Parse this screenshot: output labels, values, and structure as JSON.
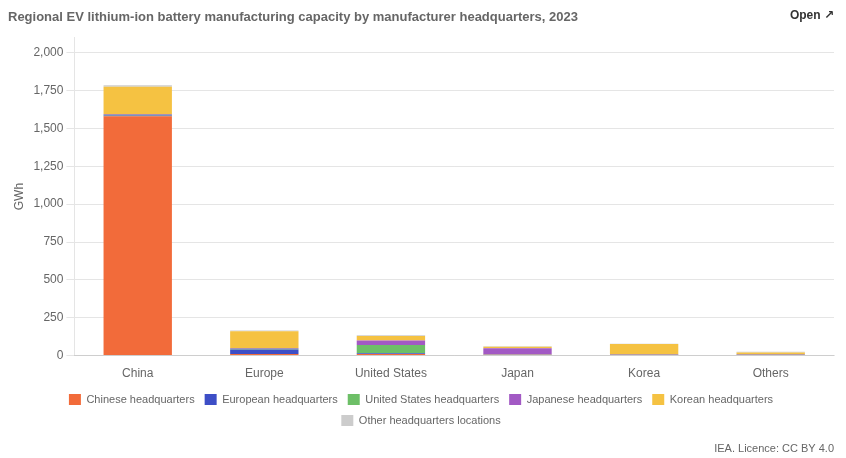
{
  "chart_data": {
    "type": "bar",
    "title": "Regional EV lithium-ion battery manufacturing capacity by manufacturer headquarters, 2023",
    "ylabel": "GWh",
    "annotations": [
      "Open ↗",
      "IEA. Licence: CC BY 4.0"
    ],
    "categories": [
      "China",
      "Europe",
      "United States",
      "Japan",
      "Korea",
      "Others"
    ],
    "series": [
      {
        "name": "Chinese headquarters",
        "color": "#f26b3a",
        "values": [
          1580,
          10,
          10,
          5,
          5,
          5
        ]
      },
      {
        "name": "European headquarters",
        "color": "#3d4ec6",
        "values": [
          5,
          30,
          5,
          2,
          2,
          2
        ]
      },
      {
        "name": "United States headquarters",
        "color": "#6dbf67",
        "values": [
          5,
          5,
          55,
          2,
          2,
          2
        ]
      },
      {
        "name": "Japanese headquarters",
        "color": "#a259c4",
        "values": [
          5,
          5,
          30,
          40,
          2,
          2
        ]
      },
      {
        "name": "Korean headquarters",
        "color": "#f5c242",
        "values": [
          180,
          110,
          30,
          10,
          65,
          10
        ]
      },
      {
        "name": "Other headquarters locations",
        "color": "#cccccc",
        "values": [
          10,
          5,
          5,
          2,
          2,
          5
        ]
      }
    ],
    "stacked": true,
    "ylim": [
      0,
      2100
    ],
    "yticks": [
      0,
      250,
      500,
      750,
      1000,
      1250,
      1500,
      1750,
      2000
    ],
    "grid": true,
    "legend": "bottom"
  }
}
